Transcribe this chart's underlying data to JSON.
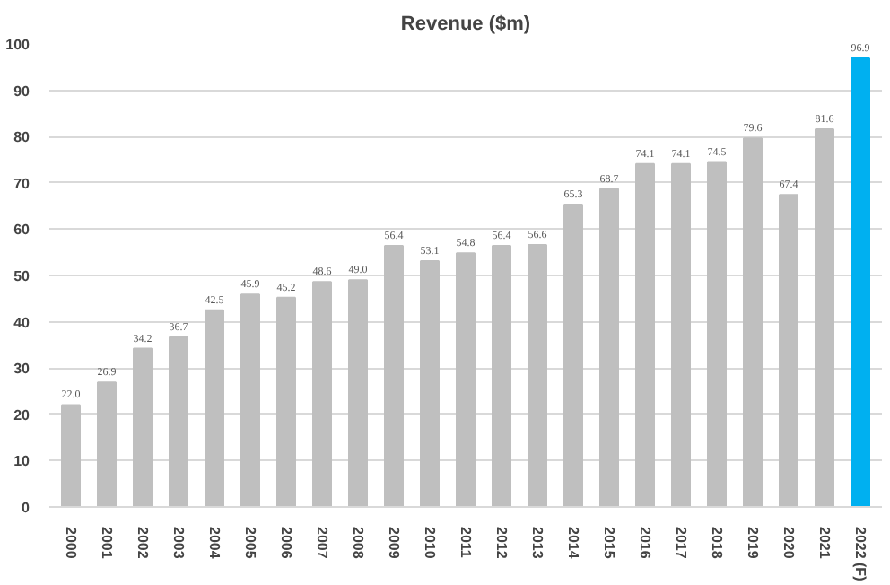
{
  "chart_data": {
    "type": "bar",
    "title": "Revenue ($m)",
    "categories": [
      "2000",
      "2001",
      "2002",
      "2003",
      "2004",
      "2005",
      "2006",
      "2007",
      "2008",
      "2009",
      "2010",
      "2011",
      "2012",
      "2013",
      "2014",
      "2015",
      "2016",
      "2017",
      "2018",
      "2019",
      "2020",
      "2021",
      "2022 (F)"
    ],
    "values": [
      22.0,
      26.9,
      34.2,
      36.7,
      42.5,
      45.9,
      45.2,
      48.6,
      49.0,
      56.4,
      53.1,
      54.8,
      56.4,
      56.6,
      65.3,
      68.7,
      74.1,
      74.1,
      74.5,
      79.6,
      67.4,
      81.6,
      96.9
    ],
    "value_labels": [
      "22.0",
      "26.9",
      "34.2",
      "36.7",
      "42.5",
      "45.9",
      "45.2",
      "48.6",
      "49.0",
      "56.4",
      "53.1",
      "54.8",
      "56.4",
      "56.6",
      "65.3",
      "68.7",
      "74.1",
      "74.1",
      "74.5",
      "79.6",
      "67.4",
      "81.6",
      "96.9"
    ],
    "colors": [
      "#bfbfbf",
      "#bfbfbf",
      "#bfbfbf",
      "#bfbfbf",
      "#bfbfbf",
      "#bfbfbf",
      "#bfbfbf",
      "#bfbfbf",
      "#bfbfbf",
      "#bfbfbf",
      "#bfbfbf",
      "#bfbfbf",
      "#bfbfbf",
      "#bfbfbf",
      "#bfbfbf",
      "#bfbfbf",
      "#bfbfbf",
      "#bfbfbf",
      "#bfbfbf",
      "#bfbfbf",
      "#bfbfbf",
      "#bfbfbf",
      "#00b0f0"
    ],
    "ylim": [
      0,
      100
    ],
    "yticks": [
      0,
      10,
      20,
      30,
      40,
      50,
      60,
      70,
      80,
      90,
      100
    ],
    "grid": "y"
  }
}
